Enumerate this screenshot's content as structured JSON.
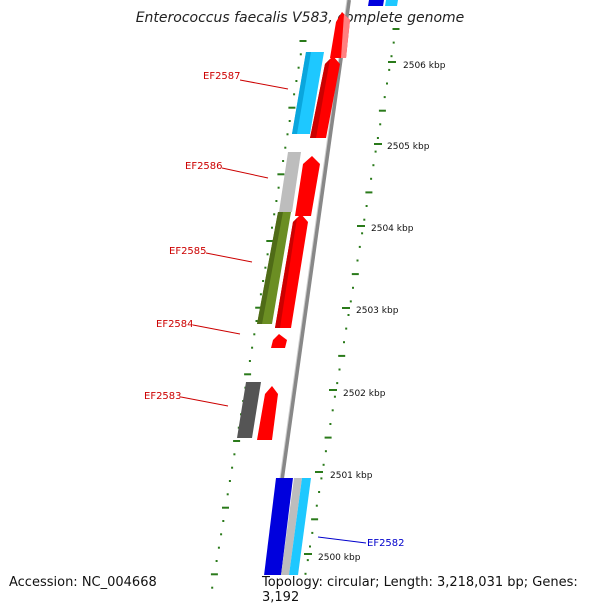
{
  "title": "Enterococcus faecalis V583, complete genome",
  "footer": {
    "accession": "Accession: NC_004668",
    "stats": "Topology: circular; Length: 3,218,031 bp; Genes: 3,192"
  },
  "colors": {
    "forward_gene": "#ff0000",
    "backbone": "#888888",
    "tick": "#2a7a1a",
    "label_red": "#cc0000",
    "label_blue": "#0000cc"
  },
  "scale_labels": [
    {
      "text": "2506 kbp"
    },
    {
      "text": "2505 kbp"
    },
    {
      "text": "2504 kbp"
    },
    {
      "text": "2503 kbp"
    },
    {
      "text": "2502 kbp"
    },
    {
      "text": "2501 kbp"
    },
    {
      "text": "2500 kbp"
    }
  ],
  "gene_labels": [
    {
      "text": "EF2587",
      "color": "#cc0000"
    },
    {
      "text": "EF2586",
      "color": "#cc0000"
    },
    {
      "text": "EF2585",
      "color": "#cc0000"
    },
    {
      "text": "EF2584",
      "color": "#cc0000"
    },
    {
      "text": "EF2583",
      "color": "#cc0000"
    },
    {
      "text": "EF2582",
      "color": "#0000cc"
    }
  ]
}
